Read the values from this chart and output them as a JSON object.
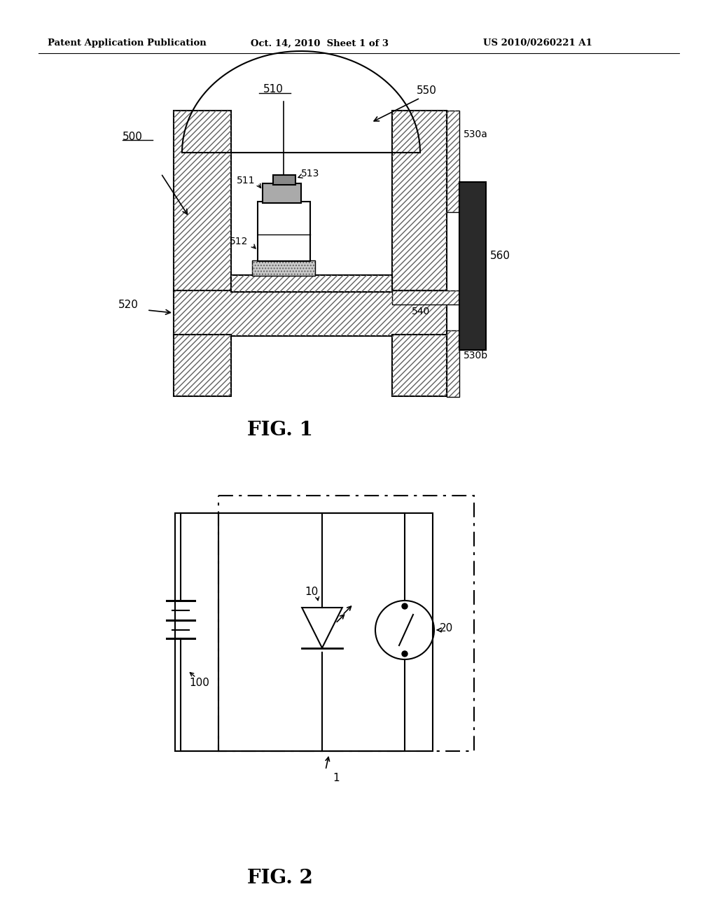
{
  "background_color": "#ffffff",
  "header_left": "Patent Application Publication",
  "header_center": "Oct. 14, 2010  Sheet 1 of 3",
  "header_right": "US 2010/0260221 A1",
  "fig1_label": "FIG. 1",
  "fig2_label": "FIG. 2",
  "label_500": "500",
  "label_510": "510",
  "label_511": "511",
  "label_512": "512",
  "label_513": "513",
  "label_520": "520",
  "label_530a": "530a",
  "label_530b": "530b",
  "label_540": "540",
  "label_550": "550",
  "label_560": "560",
  "label_1": "1",
  "label_10": "10",
  "label_20": "20",
  "label_100": "100"
}
